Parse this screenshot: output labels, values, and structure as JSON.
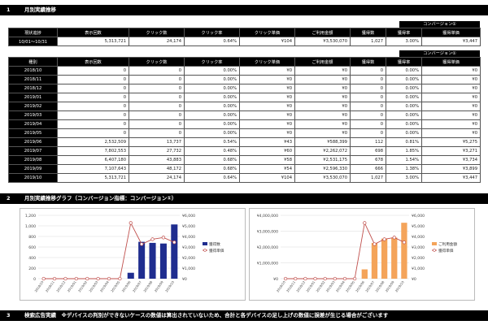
{
  "sections": [
    {
      "num": "1",
      "title": "月別実績推移"
    },
    {
      "num": "2",
      "title": "月別実績推移グラフ（コンバージョン指標：コンバージョン①）"
    },
    {
      "num": "3",
      "title": "検索広告実績　※デバイスの判別ができないケースの数値は算出されていないため、合計と各デバイスの足し上げの数値に誤差が生じる場合がございます"
    }
  ],
  "summary": {
    "conv_header": "コンバージョン①",
    "headers": [
      "現状進捗",
      "表示回数",
      "クリック数",
      "クリック率",
      "クリック単価",
      "ご利用金額",
      "獲得数",
      "獲得率",
      "獲得単価"
    ],
    "row": [
      "10/01～10/31",
      "5,313,721",
      "24,174",
      "0.64%",
      "¥104",
      "¥3,530,070",
      "1,027",
      "3.00%",
      "¥3,447"
    ]
  },
  "monthly": {
    "conv_header": "コンバージョン①",
    "headers": [
      "種別",
      "表示回数",
      "クリック数",
      "クリック率",
      "クリック単価",
      "ご利用金額",
      "獲得数",
      "獲得率",
      "獲得単価"
    ],
    "rows": [
      [
        "2018/10",
        "0",
        "0",
        "0.00%",
        "¥0",
        "¥0",
        "0",
        "0.00%",
        "¥0"
      ],
      [
        "2018/11",
        "0",
        "0",
        "0.00%",
        "¥0",
        "¥0",
        "0",
        "0.00%",
        "¥0"
      ],
      [
        "2018/12",
        "0",
        "0",
        "0.00%",
        "¥0",
        "¥0",
        "0",
        "0.00%",
        "¥0"
      ],
      [
        "2019/01",
        "0",
        "0",
        "0.00%",
        "¥0",
        "¥0",
        "0",
        "0.00%",
        "¥0"
      ],
      [
        "2019/02",
        "0",
        "0",
        "0.00%",
        "¥0",
        "¥0",
        "0",
        "0.00%",
        "¥0"
      ],
      [
        "2019/03",
        "0",
        "0",
        "0.00%",
        "¥0",
        "¥0",
        "0",
        "0.00%",
        "¥0"
      ],
      [
        "2019/04",
        "0",
        "0",
        "0.00%",
        "¥0",
        "¥0",
        "0",
        "0.00%",
        "¥0"
      ],
      [
        "2019/05",
        "0",
        "0",
        "0.00%",
        "¥0",
        "¥0",
        "0",
        "0.00%",
        "¥0"
      ],
      [
        "2019/06",
        "2,532,509",
        "13,737",
        "0.54%",
        "¥43",
        "¥588,399",
        "112",
        "0.81%",
        "¥5,275"
      ],
      [
        "2019/07",
        "7,802,553",
        "27,732",
        "0.48%",
        "¥60",
        "¥2,262,072",
        "698",
        "1.85%",
        "¥3,271"
      ],
      [
        "2019/08",
        "6,407,180",
        "43,883",
        "0.68%",
        "¥58",
        "¥2,531,175",
        "678",
        "1.54%",
        "¥3,734"
      ],
      [
        "2019/09",
        "7,107,643",
        "48,172",
        "0.68%",
        "¥54",
        "¥2,596,330",
        "666",
        "1.38%",
        "¥3,899"
      ],
      [
        "2019/10",
        "5,313,721",
        "24,174",
        "0.64%",
        "¥104",
        "¥3,530,070",
        "1,027",
        "3.00%",
        "¥3,447"
      ]
    ]
  },
  "chart_data": [
    {
      "type": "bar",
      "categories": [
        "2018/10",
        "2018/11",
        "2018/12",
        "2019/01",
        "2019/02",
        "2019/03",
        "2019/04",
        "2019/05",
        "2019/06",
        "2019/07",
        "2019/08",
        "2019/09",
        "2019/10"
      ],
      "series": [
        {
          "name": "獲得数",
          "kind": "bar",
          "axis": "left",
          "color": "#1f2d8f",
          "values": [
            0,
            0,
            0,
            0,
            0,
            0,
            0,
            0,
            112,
            698,
            678,
            666,
            1027
          ]
        },
        {
          "name": "獲得単価",
          "kind": "line",
          "axis": "right",
          "color": "#c0504d",
          "values": [
            0,
            0,
            0,
            0,
            0,
            0,
            0,
            0,
            5275,
            3271,
            3734,
            3899,
            3447
          ]
        }
      ],
      "left_ticks": [
        "0",
        "200",
        "400",
        "600",
        "800",
        "1,000",
        "1,200"
      ],
      "left_ylim": [
        0,
        1200
      ],
      "right_ticks": [
        "¥0",
        "¥1,000",
        "¥2,000",
        "¥3,000",
        "¥4,000",
        "¥5,000",
        "¥6,000"
      ],
      "right_ylim": [
        0,
        6000
      ],
      "legend_position": "right"
    },
    {
      "type": "bar",
      "categories": [
        "2018/10",
        "2018/11",
        "2018/12",
        "2019/01",
        "2019/02",
        "2019/03",
        "2019/04",
        "2019/05",
        "2019/06",
        "2019/07",
        "2019/08",
        "2019/09",
        "2019/10"
      ],
      "series": [
        {
          "name": "ご利用金額",
          "kind": "bar",
          "axis": "left",
          "color": "#f4a45a",
          "values": [
            0,
            0,
            0,
            0,
            0,
            0,
            0,
            0,
            588399,
            2262072,
            2531175,
            2596330,
            3530070
          ]
        },
        {
          "name": "獲得単価",
          "kind": "line",
          "axis": "right",
          "color": "#c0504d",
          "values": [
            0,
            0,
            0,
            0,
            0,
            0,
            0,
            0,
            5275,
            3271,
            3734,
            3899,
            3447
          ]
        }
      ],
      "left_ticks": [
        "¥0",
        "¥1,000,000",
        "¥2,000,000",
        "¥3,000,000",
        "¥4,000,000"
      ],
      "left_ylim": [
        0,
        4000000
      ],
      "right_ticks": [
        "¥0",
        "¥1,000",
        "¥2,000",
        "¥3,000",
        "¥4,000",
        "¥5,000",
        "¥6,000"
      ],
      "right_ylim": [
        0,
        6000
      ],
      "legend_position": "right"
    }
  ]
}
